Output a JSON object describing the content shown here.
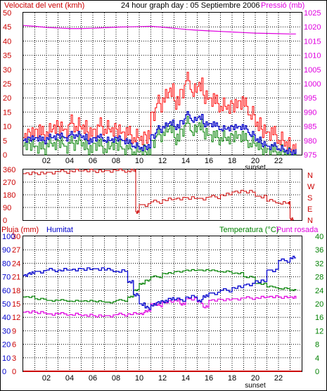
{
  "header": {
    "title": "24 hour graph day : 05 Septiembre 2006"
  },
  "colors": {
    "wind": "#ff0000",
    "gust": "#ff0000",
    "wind_avg_blue": "#0000c8",
    "wind_avg_green": "#008000",
    "pressure": "#e000e0",
    "direction": "#cc0000",
    "rain": "#cc0000",
    "humidity": "#0000cc",
    "temperature": "#008000",
    "dewpoint": "#e000e0",
    "axis_left_top": "#cc0000",
    "axis_left_bottom": "#0000cc",
    "axis_right_bottom": "#008000"
  },
  "chart_data": [
    {
      "type": "line",
      "title": "24 hour graph day : 05 Septiembre 2006",
      "ylabel": "Velocitat del vent (kmh)",
      "y2label": "Pressió (mb)",
      "x_ticks": [
        "02",
        "04",
        "06",
        "08",
        "10",
        "12",
        "14",
        "16",
        "18",
        "20",
        "22"
      ],
      "x_ticks_values": [
        2,
        4,
        6,
        8,
        10,
        12,
        14,
        16,
        18,
        20,
        22
      ],
      "x_annotation": "sunset",
      "x_annotation_at": 20,
      "xlim": [
        0,
        24
      ],
      "ylim": [
        0,
        50
      ],
      "y_ticks": [
        "0",
        "5",
        "10",
        "15",
        "20",
        "25",
        "30",
        "35",
        "40",
        "45",
        "50"
      ],
      "y_ticks_values": [
        0,
        5,
        10,
        15,
        20,
        25,
        30,
        35,
        40,
        45,
        50
      ],
      "y2lim": [
        975,
        1025
      ],
      "y2_ticks": [
        "975",
        "980",
        "985",
        "990",
        "995",
        "1000",
        "1005",
        "1010",
        "1015",
        "1020",
        "1025"
      ],
      "y2_ticks_values": [
        975,
        980,
        985,
        990,
        995,
        1000,
        1005,
        1010,
        1015,
        1020,
        1025
      ],
      "grid": true,
      "series": [
        {
          "key": "gust",
          "axis": "left",
          "x": [
            0,
            0.5,
            1,
            1.5,
            2,
            2.5,
            3,
            3.5,
            4,
            4.5,
            5,
            5.5,
            6,
            6.5,
            7,
            7.5,
            8,
            8.5,
            9,
            9.5,
            10,
            10.5,
            11,
            11.5,
            12,
            12.5,
            13,
            13.5,
            14,
            14.5,
            15,
            15.5,
            16,
            16.5,
            17,
            17.5,
            18,
            18.5,
            19,
            19.5,
            20,
            20.5,
            21,
            21.5,
            22,
            22.5,
            23,
            23.5
          ],
          "values": [
            6,
            8,
            9,
            7,
            8,
            9,
            10,
            9,
            11,
            10,
            9,
            8,
            9,
            10,
            9,
            8,
            9,
            8,
            7,
            6,
            5,
            7,
            15,
            18,
            20,
            22,
            19,
            23,
            26,
            22,
            24,
            21,
            20,
            18,
            17,
            16,
            18,
            19,
            17,
            14,
            10,
            9,
            8,
            7,
            5,
            3,
            2,
            4
          ]
        },
        {
          "key": "wind_avg_blue",
          "axis": "left",
          "x": [
            0,
            0.5,
            1,
            1.5,
            2,
            2.5,
            3,
            3.5,
            4,
            4.5,
            5,
            5.5,
            6,
            6.5,
            7,
            7.5,
            8,
            8.5,
            9,
            9.5,
            10,
            10.5,
            11,
            11.5,
            12,
            12.5,
            13,
            13.5,
            14,
            14.5,
            15,
            15.5,
            16,
            16.5,
            17,
            17.5,
            18,
            18.5,
            19,
            19.5,
            20,
            20.5,
            21,
            21.5,
            22,
            22.5,
            23,
            23.5
          ],
          "values": [
            5,
            6,
            6,
            5,
            6,
            6,
            7,
            6,
            7,
            7,
            6,
            5,
            6,
            6,
            5,
            5,
            6,
            5,
            4,
            3,
            2,
            3,
            7,
            9,
            10,
            11,
            10,
            12,
            14,
            12,
            13,
            11,
            11,
            10,
            9,
            9,
            10,
            10,
            9,
            7,
            5,
            4,
            3,
            3,
            2,
            1,
            1,
            2
          ]
        },
        {
          "key": "wind_avg_green",
          "axis": "left",
          "x": [
            0,
            0.5,
            1,
            1.5,
            2,
            2.5,
            3,
            3.5,
            4,
            4.5,
            5,
            5.5,
            6,
            6.5,
            7,
            7.5,
            8,
            8.5,
            9,
            9.5,
            10,
            10.5,
            11,
            11.5,
            12,
            12.5,
            13,
            13.5,
            14,
            14.5,
            15,
            15.5,
            16,
            16.5,
            17,
            17.5,
            18,
            18.5,
            19,
            19.5,
            20,
            20.5,
            21,
            21.5,
            22,
            22.5,
            23,
            23.5
          ],
          "values": [
            3,
            4,
            3,
            2,
            4,
            3,
            5,
            3,
            4,
            5,
            3,
            2,
            4,
            3,
            2,
            3,
            4,
            2,
            2,
            1,
            1,
            1,
            5,
            7,
            8,
            9,
            6,
            9,
            11,
            8,
            10,
            8,
            7,
            6,
            6,
            5,
            7,
            7,
            5,
            4,
            3,
            2,
            2,
            1,
            1,
            0,
            0,
            1
          ]
        },
        {
          "key": "pressure",
          "axis": "right",
          "x": [
            0,
            1,
            2,
            3,
            4,
            5,
            6,
            7,
            8,
            9,
            10,
            11,
            12,
            13,
            14,
            15,
            16,
            17,
            18,
            19,
            20,
            21,
            22,
            23,
            23.5
          ],
          "values": [
            1020.5,
            1020.2,
            1019.8,
            1019.6,
            1019.4,
            1019.4,
            1019.5,
            1019.7,
            1019.9,
            1020.0,
            1020.1,
            1020.2,
            1019.9,
            1019.5,
            1019.1,
            1018.8,
            1018.6,
            1018.4,
            1018.2,
            1018.0,
            1017.8,
            1017.7,
            1017.6,
            1017.5,
            1017.5
          ]
        }
      ]
    },
    {
      "type": "line",
      "y_ticks": [
        "0",
        "90",
        "180",
        "270",
        "360"
      ],
      "y_ticks_values": [
        0,
        90,
        180,
        270,
        360
      ],
      "ylim": [
        0,
        360
      ],
      "xlim": [
        0,
        24
      ],
      "right_labels": [
        "N",
        "W",
        "S",
        "E",
        "N"
      ],
      "grid": true,
      "series": [
        {
          "key": "direction",
          "x": [
            0,
            1,
            2,
            3,
            4,
            5,
            6,
            7,
            8,
            9,
            9.6,
            9.7,
            10,
            11,
            12,
            13,
            14,
            15,
            16,
            17,
            18,
            19,
            20,
            21,
            22,
            22.8,
            23,
            23.3
          ],
          "values": [
            330,
            335,
            340,
            345,
            350,
            350,
            350,
            352,
            352,
            350,
            350,
            60,
            110,
            130,
            145,
            150,
            160,
            155,
            165,
            180,
            200,
            205,
            170,
            135,
            120,
            120,
            10,
            5
          ]
        }
      ]
    },
    {
      "type": "line",
      "ylabel": "Pluja (mm)",
      "ylabel2": "Humitat",
      "y2label": "Temperatura (°C)",
      "y2label2": "Punt rosada",
      "x_ticks": [
        "02",
        "04",
        "06",
        "08",
        "10",
        "12",
        "14",
        "16",
        "18",
        "20",
        "22"
      ],
      "x_ticks_values": [
        2,
        4,
        6,
        8,
        10,
        12,
        14,
        16,
        18,
        20,
        22
      ],
      "x_annotation": "sunset",
      "x_annotation_at": 20,
      "xlim": [
        0,
        24
      ],
      "rain_ticks": [
        "0",
        "3",
        "6",
        "9",
        "12",
        "15",
        "18",
        "21",
        "24",
        "27",
        "30"
      ],
      "rain_ticks_values": [
        0,
        3,
        6,
        9,
        12,
        15,
        18,
        21,
        24,
        27,
        30
      ],
      "hum_ticks": [
        "0",
        "10",
        "20",
        "30",
        "40",
        "50",
        "60",
        "70",
        "80",
        "90",
        "100"
      ],
      "hum_ticks_values": [
        0,
        10,
        20,
        30,
        40,
        50,
        60,
        70,
        80,
        90,
        100
      ],
      "temp_ticks": [
        "0",
        "4",
        "8",
        "12",
        "16",
        "20",
        "24",
        "28",
        "32",
        "36",
        "40"
      ],
      "temp_ticks_values": [
        0,
        4,
        8,
        12,
        16,
        20,
        24,
        28,
        32,
        36,
        40
      ],
      "grid": true,
      "series": [
        {
          "key": "humidity",
          "axis": "hum",
          "x": [
            0,
            0.5,
            1,
            2,
            3,
            4,
            5,
            6,
            7,
            8,
            9,
            9.5,
            10,
            10.5,
            11,
            11.5,
            12,
            12.5,
            13,
            14,
            15,
            15.5,
            16,
            17,
            18,
            19,
            20,
            21,
            22,
            23,
            23.5
          ],
          "values": [
            71,
            73,
            74,
            75,
            75,
            75,
            76,
            76,
            75,
            74,
            66,
            57,
            50,
            47,
            49,
            51,
            52,
            54,
            53,
            55,
            52,
            56,
            58,
            60,
            62,
            64,
            67,
            75,
            82,
            84,
            84
          ]
        },
        {
          "key": "temperature",
          "axis": "temp",
          "x": [
            0,
            1,
            2,
            3,
            4,
            5,
            6,
            7,
            8,
            9,
            9.5,
            10,
            10.5,
            11,
            12,
            13,
            14,
            15,
            16,
            17,
            18,
            19,
            20,
            21,
            22,
            23,
            23.5
          ],
          "values": [
            22,
            21.5,
            21,
            21,
            20.8,
            20.8,
            20.8,
            20.5,
            21,
            22,
            24,
            26,
            27,
            28,
            29,
            29.5,
            30,
            30,
            29.8,
            29.5,
            29,
            28,
            26,
            25,
            24.5,
            24,
            24
          ]
        },
        {
          "key": "dewpoint",
          "axis": "temp",
          "x": [
            0,
            1,
            2,
            3,
            4,
            5,
            6,
            7,
            8,
            9,
            10,
            10.5,
            11,
            11.5,
            12,
            13,
            13.5,
            14,
            15,
            15.5,
            16,
            17,
            18,
            19,
            20,
            21,
            22,
            23,
            23.5
          ],
          "values": [
            17.5,
            17.5,
            17,
            17,
            16.8,
            16.5,
            16.5,
            16.5,
            16.8,
            17,
            17,
            18,
            20,
            19.5,
            20.5,
            21,
            20,
            21.5,
            20.5,
            19,
            21,
            21.3,
            21.5,
            21.7,
            21.8,
            22,
            22,
            22,
            21.5
          ]
        },
        {
          "key": "rain",
          "axis": "rain",
          "x": [
            0,
            24
          ],
          "values": [
            0,
            0
          ]
        }
      ]
    }
  ],
  "labels": {
    "wind_axis": "Velocitat del vent (kmh)",
    "pressure_axis": "Pressió (mb)",
    "rain_axis": "Pluja (mm)",
    "humidity_axis": "Humitat",
    "temp_axis": "Temperatura (°C)",
    "dew_axis": "Punt rosada",
    "sunset": "sunset"
  }
}
